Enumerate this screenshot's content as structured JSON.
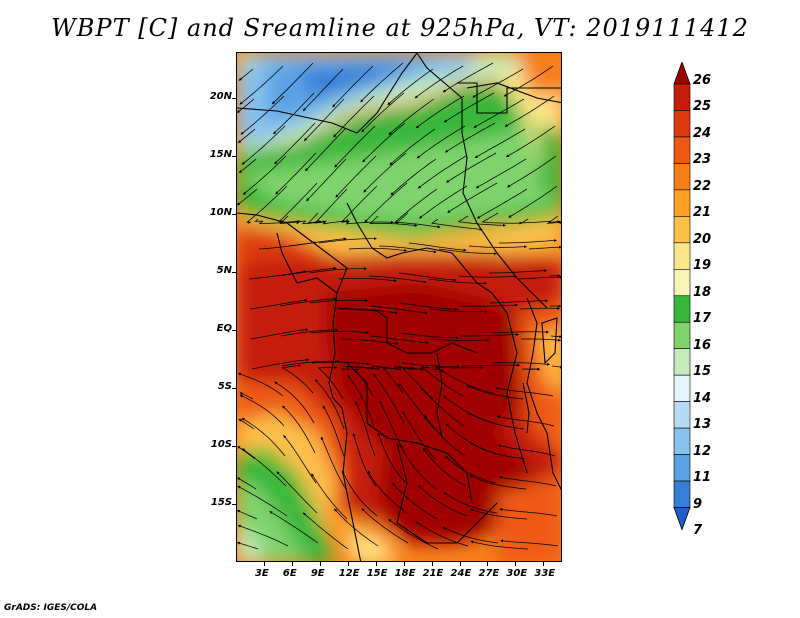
{
  "title": "WBPT [C] and Sreamline at 925hPa, VT: 2019111412",
  "credit": "GrADS: IGES/COLA",
  "map": {
    "projection": "lat-lon",
    "lon_range": [
      0,
      35
    ],
    "lat_range": [
      -20,
      24
    ],
    "y_axis_labels": [
      "20N",
      "15N",
      "10N",
      "5N",
      "EQ",
      "5S",
      "10S",
      "15S"
    ],
    "x_axis_labels": [
      "3E",
      "6E",
      "9E",
      "12E",
      "15E",
      "18E",
      "21E",
      "24E",
      "27E",
      "30E",
      "33E"
    ]
  },
  "colorbar": {
    "labels": [
      "26",
      "25",
      "24",
      "23",
      "22",
      "21",
      "20",
      "19",
      "18",
      "17",
      "16",
      "15",
      "14",
      "13",
      "12",
      "11",
      "9",
      "7"
    ],
    "colors": [
      "#a00000",
      "#c41e0b",
      "#dd3a10",
      "#ee5a14",
      "#f77f1a",
      "#fca124",
      "#fdc048",
      "#fde58a",
      "#f9f3b4",
      "#38b83a",
      "#7fd36c",
      "#c3ecba",
      "#e4f4fb",
      "#b6dcf5",
      "#88c2ee",
      "#5aa2e4",
      "#347ed7",
      "#1e5ec8"
    ]
  }
}
